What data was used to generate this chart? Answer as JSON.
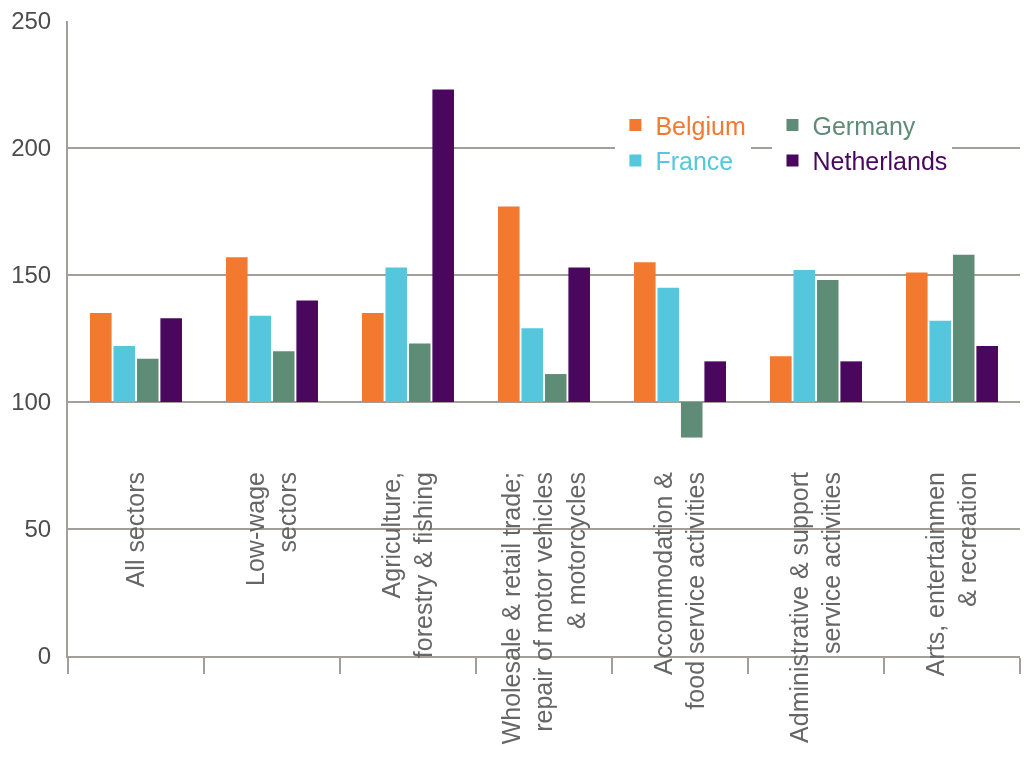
{
  "chart_data": {
    "type": "bar",
    "categories": [
      "All sectors",
      "Low-wage\nsectors",
      "Agriculture,\nforestry & fishing",
      "Wholesale & retail trade;\nrepair of motor vehicles\n& motorcycles",
      "Accommodation &\nfood service activities",
      "Administrative & support\nservice activities",
      "Arts, entertainmen\n& recreation"
    ],
    "series": [
      {
        "name": "Belgium",
        "color": "#f37931",
        "values": [
          35,
          57,
          35,
          77,
          55,
          18,
          51
        ],
        "base": [
          100,
          100,
          100,
          100,
          100,
          100,
          100
        ]
      },
      {
        "name": "France",
        "color": "#54c7dc",
        "values": [
          22,
          34,
          53,
          29,
          45,
          52,
          32
        ],
        "base": [
          100,
          100,
          100,
          100,
          100,
          100,
          100
        ]
      },
      {
        "name": "Germany",
        "color": "#5f8c76",
        "values": [
          17,
          20,
          23,
          11,
          -14,
          48,
          58
        ],
        "base": [
          100,
          100,
          100,
          100,
          100,
          100,
          100
        ]
      },
      {
        "name": "Netherlands",
        "color": "#49075e",
        "values": [
          33,
          40,
          123,
          53,
          16,
          16,
          22
        ],
        "base": [
          100,
          100,
          100,
          100,
          100,
          100,
          100
        ]
      }
    ],
    "ylim": [
      0,
      250
    ],
    "yticks": [
      0,
      50,
      100,
      150,
      200,
      250
    ],
    "grid": "y",
    "legend": "top right"
  }
}
